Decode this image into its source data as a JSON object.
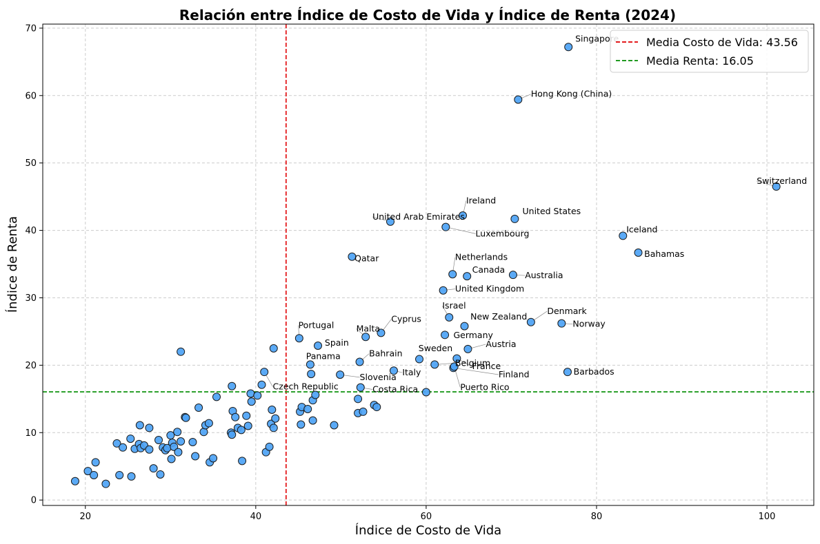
{
  "chart_data": {
    "type": "scatter",
    "title": "Relación entre Índice de Costo de Vida y Índice de Renta (2024)",
    "xlabel": "Índice de Costo de Vida",
    "ylabel": "Índice de Renta",
    "xlim": [
      15,
      105.5
    ],
    "ylim": [
      -0.8,
      70.6
    ],
    "xticks": [
      20,
      40,
      60,
      80,
      100
    ],
    "yticks": [
      0,
      10,
      20,
      30,
      40,
      50,
      60,
      70
    ],
    "grid": true,
    "legend_position": "top-right",
    "point_color": "#4da3f5",
    "reference_lines": [
      {
        "axis": "x",
        "value": 43.56,
        "color": "#e41a1c",
        "label": "Media Costo de Vida: 43.56"
      },
      {
        "axis": "y",
        "value": 16.05,
        "color": "#1f9a1f",
        "label": "Media Renta: 16.05"
      }
    ],
    "labeled_points": [
      {
        "name": "Singapore",
        "label": "Singapore",
        "x": 76.7,
        "y": 67.2,
        "dx": 0.8,
        "dy": 0.8
      },
      {
        "name": "Hong Kong (China)",
        "label": "Hong Kong (China)",
        "x": 70.8,
        "y": 59.4,
        "dx": 1.5,
        "dy": 0.4
      },
      {
        "name": "Switzerland",
        "label": "Switzerland",
        "x": 101.1,
        "y": 46.5,
        "dx": -2.3,
        "dy": 0.4
      },
      {
        "name": "Ireland",
        "label": "Ireland",
        "x": 64.3,
        "y": 42.2,
        "dx": 0.4,
        "dy": 1.8
      },
      {
        "name": "United States",
        "label": "United States",
        "x": 70.4,
        "y": 41.7,
        "dx": 0.9,
        "dy": 0.7
      },
      {
        "name": "United Arab Emirates",
        "label": "United Arab Emirates",
        "x": 55.8,
        "y": 41.3,
        "dx": -2.1,
        "dy": 0.3
      },
      {
        "name": "Luxembourg",
        "label": "Luxembourg",
        "x": 62.3,
        "y": 40.5,
        "dx": 3.5,
        "dy": -1.4
      },
      {
        "name": "Iceland",
        "label": "Iceland",
        "x": 83.1,
        "y": 39.2,
        "dx": 0.4,
        "dy": 0.5
      },
      {
        "name": "Bahamas",
        "label": "Bahamas",
        "x": 84.9,
        "y": 36.7,
        "dx": 0.7,
        "dy": -0.6
      },
      {
        "name": "Qatar",
        "label": "Qatar",
        "x": 51.3,
        "y": 36.1,
        "dx": 0.3,
        "dy": -0.7
      },
      {
        "name": "Netherlands",
        "label": "Netherlands",
        "x": 63.1,
        "y": 33.5,
        "dx": 0.3,
        "dy": 2.1
      },
      {
        "name": "Canada",
        "label": "Canada",
        "x": 64.8,
        "y": 33.2,
        "dx": 0.6,
        "dy": 0.5
      },
      {
        "name": "Australia",
        "label": "Australia",
        "x": 70.2,
        "y": 33.4,
        "dx": 1.4,
        "dy": -0.5
      },
      {
        "name": "United Kingdom",
        "label": "United Kingdom",
        "x": 62.0,
        "y": 31.1,
        "dx": 1.4,
        "dy": -0.2
      },
      {
        "name": "Israel",
        "label": "Israel",
        "x": 62.7,
        "y": 27.1,
        "dx": -0.8,
        "dy": 1.3
      },
      {
        "name": "Denmark",
        "label": "Denmark",
        "x": 72.3,
        "y": 26.4,
        "dx": 1.9,
        "dy": 1.2
      },
      {
        "name": "New Zealand",
        "label": "New Zealand",
        "x": 64.5,
        "y": 25.8,
        "dx": 0.7,
        "dy": 1.0
      },
      {
        "name": "Norway",
        "label": "Norway",
        "x": 75.9,
        "y": 26.2,
        "dx": 1.3,
        "dy": -0.5
      },
      {
        "name": "Cyprus",
        "label": "Cyprus",
        "x": 54.7,
        "y": 24.8,
        "dx": 1.2,
        "dy": 1.6
      },
      {
        "name": "Malta",
        "label": "Malta",
        "x": 52.9,
        "y": 24.2,
        "dx": -1.1,
        "dy": 0.8
      },
      {
        "name": "Portugal",
        "label": "Portugal",
        "x": 45.1,
        "y": 24.0,
        "dx": -0.1,
        "dy": 1.5
      },
      {
        "name": "Germany",
        "label": "Germany",
        "x": 62.2,
        "y": 24.5,
        "dx": 1.0,
        "dy": -0.5
      },
      {
        "name": "Austria",
        "label": "Austria",
        "x": 64.9,
        "y": 22.4,
        "dx": 2.1,
        "dy": 0.3
      },
      {
        "name": "Spain",
        "label": "Spain",
        "x": 47.3,
        "y": 22.9,
        "dx": 0.8,
        "dy": 0.0
      },
      {
        "name": "Sweden",
        "label": "Sweden",
        "x": 59.2,
        "y": 20.9,
        "dx": -0.1,
        "dy": 1.2
      },
      {
        "name": "France",
        "label": "France",
        "x": 63.6,
        "y": 21.0,
        "dx": 1.8,
        "dy": -1.6
      },
      {
        "name": "Bahrain",
        "label": "Bahrain",
        "x": 52.2,
        "y": 20.5,
        "dx": 1.1,
        "dy": 0.8
      },
      {
        "name": "Panama",
        "label": "Panama",
        "x": 46.4,
        "y": 20.1,
        "dx": -0.5,
        "dy": 0.8
      },
      {
        "name": "Belgium",
        "label": "Belgium",
        "x": 61.0,
        "y": 20.1,
        "dx": 2.4,
        "dy": -0.2
      },
      {
        "name": "Finland",
        "label": "Finland",
        "x": 63.2,
        "y": 19.6,
        "dx": 5.3,
        "dy": -1.4
      },
      {
        "name": "Barbados",
        "label": "Barbados",
        "x": 76.6,
        "y": 19.0,
        "dx": 0.7,
        "dy": -0.4
      },
      {
        "name": "Slovenia",
        "label": "Slovenia",
        "x": 49.9,
        "y": 18.6,
        "dx": 2.3,
        "dy": -0.8
      },
      {
        "name": "Italy",
        "label": "Italy",
        "x": 56.2,
        "y": 19.2,
        "dx": 1.0,
        "dy": -0.7
      },
      {
        "name": "Czech Republic",
        "label": "Czech Republic",
        "x": 41.0,
        "y": 19.0,
        "dx": 1.0,
        "dy": -2.6
      },
      {
        "name": "Costa Rica",
        "label": "Costa Rica",
        "x": 52.3,
        "y": 16.7,
        "dx": 1.4,
        "dy": -0.7
      },
      {
        "name": "Puerto Rico",
        "label": "Puerto Rico",
        "x": 63.3,
        "y": 19.8,
        "dx": 0.7,
        "dy": -3.5
      }
    ],
    "unlabeled_points": [
      {
        "x": 18.8,
        "y": 2.8
      },
      {
        "x": 20.3,
        "y": 4.3
      },
      {
        "x": 21.0,
        "y": 3.7
      },
      {
        "x": 21.2,
        "y": 5.6
      },
      {
        "x": 22.4,
        "y": 2.4
      },
      {
        "x": 23.7,
        "y": 8.4
      },
      {
        "x": 24.0,
        "y": 3.7
      },
      {
        "x": 24.4,
        "y": 7.8
      },
      {
        "x": 25.3,
        "y": 9.1
      },
      {
        "x": 25.4,
        "y": 3.5
      },
      {
        "x": 25.8,
        "y": 7.6
      },
      {
        "x": 26.3,
        "y": 8.3
      },
      {
        "x": 26.4,
        "y": 11.1
      },
      {
        "x": 26.5,
        "y": 7.7
      },
      {
        "x": 26.9,
        "y": 8.1
      },
      {
        "x": 27.5,
        "y": 7.5
      },
      {
        "x": 27.5,
        "y": 10.7
      },
      {
        "x": 28.0,
        "y": 4.7
      },
      {
        "x": 28.6,
        "y": 8.9
      },
      {
        "x": 28.8,
        "y": 3.8
      },
      {
        "x": 29.1,
        "y": 7.8
      },
      {
        "x": 29.4,
        "y": 7.4
      },
      {
        "x": 29.6,
        "y": 7.7
      },
      {
        "x": 30.0,
        "y": 9.6
      },
      {
        "x": 30.1,
        "y": 6.1
      },
      {
        "x": 30.2,
        "y": 8.5
      },
      {
        "x": 30.4,
        "y": 7.9
      },
      {
        "x": 30.8,
        "y": 10.1
      },
      {
        "x": 30.9,
        "y": 7.1
      },
      {
        "x": 31.2,
        "y": 8.7
      },
      {
        "x": 31.2,
        "y": 22.0
      },
      {
        "x": 31.7,
        "y": 12.3
      },
      {
        "x": 32.6,
        "y": 8.6
      },
      {
        "x": 32.9,
        "y": 6.5
      },
      {
        "x": 33.3,
        "y": 13.7
      },
      {
        "x": 33.9,
        "y": 10.1
      },
      {
        "x": 34.1,
        "y": 11.1
      },
      {
        "x": 34.5,
        "y": 11.4
      },
      {
        "x": 34.6,
        "y": 5.6
      },
      {
        "x": 35.0,
        "y": 6.2
      },
      {
        "x": 35.4,
        "y": 15.3
      },
      {
        "x": 37.1,
        "y": 10.0
      },
      {
        "x": 37.2,
        "y": 9.7
      },
      {
        "x": 37.2,
        "y": 16.9
      },
      {
        "x": 37.3,
        "y": 13.2
      },
      {
        "x": 37.6,
        "y": 12.3
      },
      {
        "x": 37.9,
        "y": 10.7
      },
      {
        "x": 38.3,
        "y": 10.4
      },
      {
        "x": 38.4,
        "y": 5.8
      },
      {
        "x": 38.9,
        "y": 12.5
      },
      {
        "x": 39.1,
        "y": 11.0
      },
      {
        "x": 39.4,
        "y": 15.8
      },
      {
        "x": 39.5,
        "y": 14.6
      },
      {
        "x": 40.2,
        "y": 15.5
      },
      {
        "x": 40.7,
        "y": 17.1
      },
      {
        "x": 41.2,
        "y": 7.1
      },
      {
        "x": 41.6,
        "y": 7.9
      },
      {
        "x": 41.8,
        "y": 11.3
      },
      {
        "x": 41.9,
        "y": 13.4
      },
      {
        "x": 42.1,
        "y": 10.7
      },
      {
        "x": 42.1,
        "y": 22.5
      },
      {
        "x": 42.3,
        "y": 12.1
      },
      {
        "x": 45.2,
        "y": 13.1
      },
      {
        "x": 45.3,
        "y": 11.2
      },
      {
        "x": 45.4,
        "y": 13.8
      },
      {
        "x": 46.1,
        "y": 13.5
      },
      {
        "x": 46.7,
        "y": 14.8
      },
      {
        "x": 46.7,
        "y": 11.8
      },
      {
        "x": 47.0,
        "y": 15.6
      },
      {
        "x": 46.5,
        "y": 18.7
      },
      {
        "x": 49.2,
        "y": 11.1
      },
      {
        "x": 52.0,
        "y": 15.0
      },
      {
        "x": 52.0,
        "y": 12.9
      },
      {
        "x": 52.6,
        "y": 13.1
      },
      {
        "x": 53.9,
        "y": 14.1
      },
      {
        "x": 54.2,
        "y": 13.8
      },
      {
        "x": 60.0,
        "y": 16.0
      },
      {
        "x": 31.8,
        "y": 12.2
      }
    ]
  }
}
